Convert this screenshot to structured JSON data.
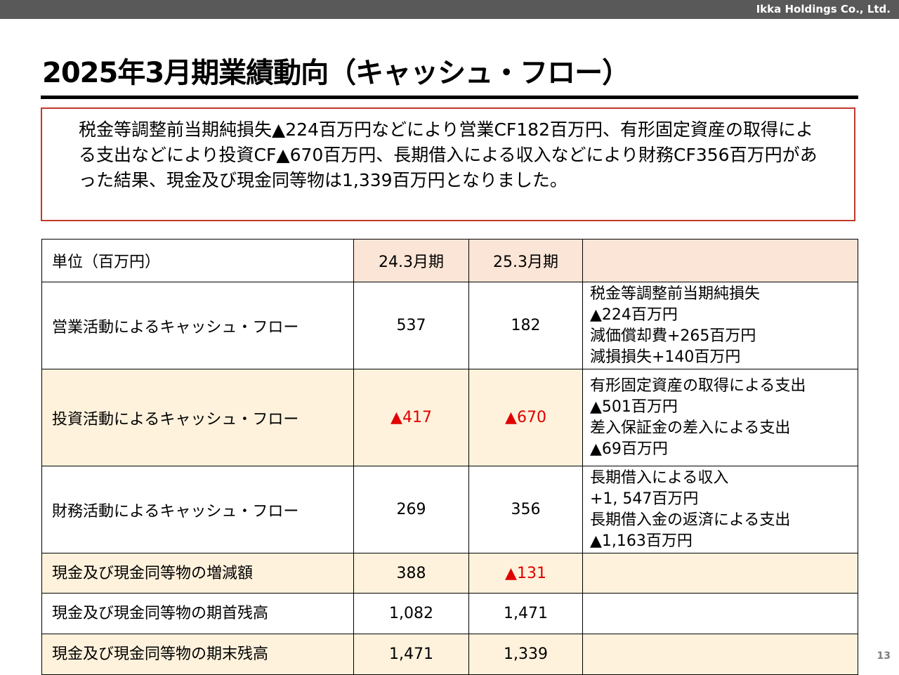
{
  "header": {
    "company": "Ikka Holdings Co., Ltd."
  },
  "title": "2025年3月期業績動向（キャッシュ・フロー）",
  "summary": "税金等調整前当期純損失▲224百万円などにより営業CF182百万円、有形固定資産の取得による支出などにより投資CF▲670百万円、長期借入による収入などにより財務CF356百万円があった結果、現金及び現金同等物は1,339百万円となりました。",
  "table": {
    "unit_label": "単位（百万円）",
    "period_1": "24.3月期",
    "period_2": "25.3月期",
    "rows": [
      {
        "label": "営業活動によるキャッシュ・フロー",
        "v1": "537",
        "v2": "182",
        "notes": [
          "税金等調整前当期純損失",
          "▲224百万円",
          "減価償却費+265百万円",
          "減損損失+140百万円"
        ]
      },
      {
        "label": "投資活動によるキャッシュ・フロー",
        "v1": "▲417",
        "v2": "▲670",
        "notes": [
          "有形固定資産の取得による支出",
          "▲501百万円",
          "差入保証金の差入による支出",
          "▲69百万円"
        ]
      },
      {
        "label": "財務活動によるキャッシュ・フロー",
        "v1": "269",
        "v2": "356",
        "notes": [
          "長期借入による収入",
          "+1, 547百万円",
          "長期借入金の返済による支出",
          "▲1,163百万円"
        ]
      },
      {
        "label": "現金及び現金同等物の増減額",
        "v1": "388",
        "v2": "▲131"
      },
      {
        "label": "現金及び現金同等物の期首残高",
        "v1": "1,082",
        "v2": "1,471"
      },
      {
        "label": "現金及び現金同等物の期末残高",
        "v1": "1,471",
        "v2": "1,339"
      }
    ]
  },
  "page_number": "13",
  "colors": {
    "topbar": "#595959",
    "summary_border": "#c0392b",
    "header_fill": "#fbe5d6",
    "row_fill": "#fff2dc",
    "negative": "#e00000"
  }
}
